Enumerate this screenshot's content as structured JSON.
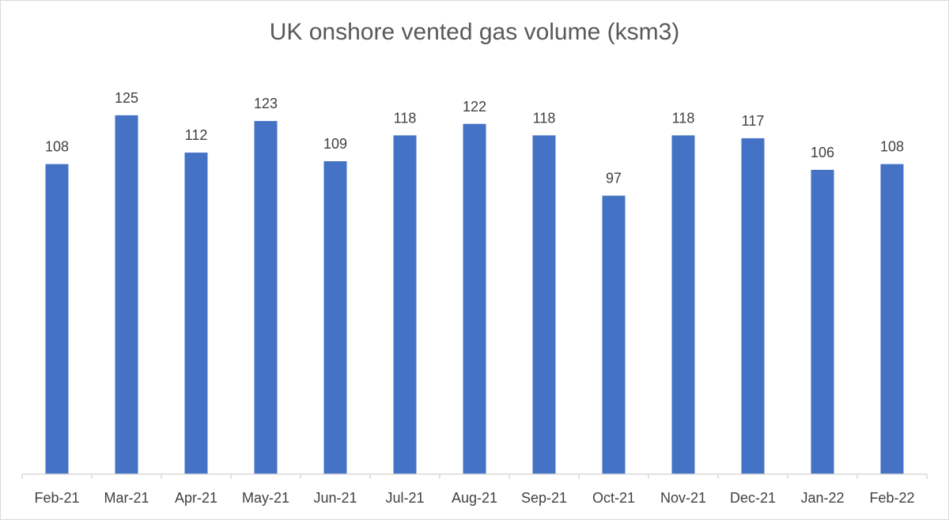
{
  "chart_data": {
    "type": "bar",
    "title": "UK onshore vented gas volume (ksm3)",
    "categories": [
      "Feb-21",
      "Mar-21",
      "Apr-21",
      "May-21",
      "Jun-21",
      "Jul-21",
      "Aug-21",
      "Sep-21",
      "Oct-21",
      "Nov-21",
      "Dec-21",
      "Jan-22",
      "Feb-22"
    ],
    "values": [
      108,
      125,
      112,
      123,
      109,
      118,
      122,
      118,
      97,
      118,
      117,
      106,
      108
    ],
    "xlabel": "",
    "ylabel": "",
    "ylim": [
      0,
      160
    ],
    "grid": false,
    "legend": "none",
    "data_labels": true,
    "colors": {
      "bar": "#4472C4",
      "axis": "#d9d9d9",
      "text": "#404040",
      "title": "#595959"
    }
  }
}
